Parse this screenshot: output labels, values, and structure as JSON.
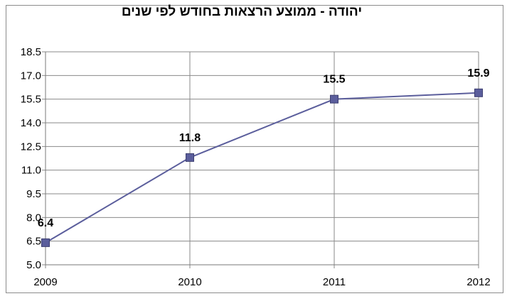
{
  "chart_data": {
    "type": "line",
    "title": "יהודה - ממוצע הרצאות בחודש לפי שנים",
    "categories": [
      "2009",
      "2010",
      "2011",
      "2012"
    ],
    "series": [
      {
        "values": [
          6.4,
          11.8,
          15.5,
          15.9
        ],
        "color": "#5b5e9c"
      }
    ],
    "data_labels": [
      "6.4",
      "11.8",
      "15.5",
      "15.9"
    ],
    "y_ticks": [
      5.0,
      6.5,
      8.0,
      9.5,
      11.0,
      12.5,
      14.0,
      15.5,
      17.0,
      18.5
    ],
    "y_tick_labels": [
      "5.0",
      "6.5",
      "8.0",
      "9.5",
      "11.0",
      "12.5",
      "14.0",
      "15.5",
      "17.0",
      "18.5"
    ],
    "ylim": [
      5.0,
      18.5
    ],
    "grid": true,
    "legend": "none",
    "xlabel": "",
    "ylabel": ""
  }
}
